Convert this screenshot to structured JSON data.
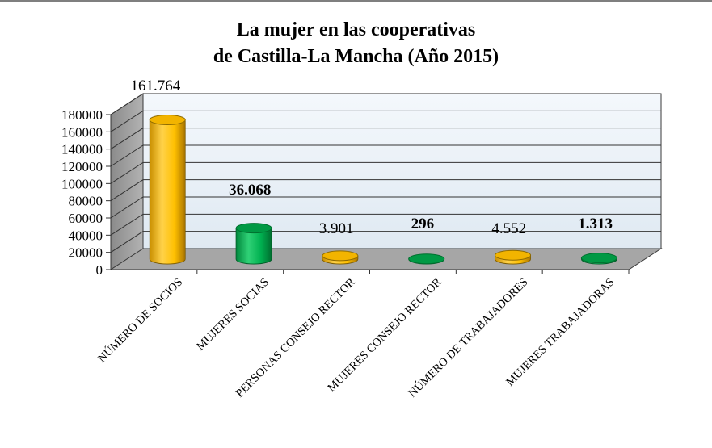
{
  "chart_data": {
    "type": "bar",
    "title_line1": "La mujer en las cooperativas",
    "title_line2": "de Castilla-La Mancha (Año 2015)",
    "categories": [
      "NÚMERO DE SOCIOS",
      "MUJERES SOCIAS",
      "PERSONAS CONSEJO RECTOR",
      "MUJERES CONSEJO RECTOR",
      "NÚMERO DE TRABAJADORES",
      "MUJERES TRABAJADORAS"
    ],
    "values": [
      161764,
      36068,
      3901,
      296,
      4552,
      1313
    ],
    "data_labels": [
      "161.764",
      "36.068",
      "3.901",
      "296",
      "4.552",
      "1.313"
    ],
    "data_labels_bold": [
      false,
      true,
      false,
      true,
      false,
      true
    ],
    "bar_colors": [
      "#ffc000",
      "#00b050",
      "#ffc000",
      "#00b050",
      "#ffc000",
      "#00b050"
    ],
    "y_ticks": [
      "0",
      "20000",
      "40000",
      "60000",
      "80000",
      "100000",
      "120000",
      "140000",
      "160000",
      "180000"
    ],
    "ylim": [
      0,
      180000
    ],
    "grid": true,
    "style": "3d-cylinder",
    "xlabel": "",
    "ylabel": ""
  }
}
